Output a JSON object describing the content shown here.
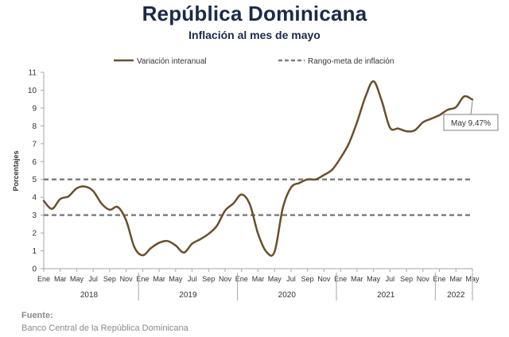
{
  "header": {
    "title": "República Dominicana",
    "subtitle": "Inflación al mes de mayo"
  },
  "source": {
    "label": "Fuente:",
    "text": "Banco Central de la República Dominicana"
  },
  "chart_data": {
    "type": "line",
    "ylabel": "Porcentajes",
    "ylim": [
      0,
      11
    ],
    "yticks": [
      0,
      1,
      2,
      3,
      4,
      5,
      6,
      7,
      8,
      9,
      10,
      11
    ],
    "grid": false,
    "legend_position": "top",
    "month_ticks": [
      "Ene",
      "Mar",
      "May",
      "Jul",
      "Sep",
      "Nov",
      "Ene",
      "Mar",
      "May",
      "Jul",
      "Sep",
      "Nov",
      "Ene",
      "Mar",
      "May",
      "Jul",
      "Sep",
      "Nov",
      "Ene",
      "Mar",
      "May",
      "Jul",
      "Sep",
      "Nov",
      "Ene",
      "Mar",
      "May"
    ],
    "years": [
      {
        "label": "2018",
        "start": 0,
        "end": 11
      },
      {
        "label": "2019",
        "start": 12,
        "end": 23
      },
      {
        "label": "2020",
        "start": 24,
        "end": 35
      },
      {
        "label": "2021",
        "start": 36,
        "end": 47
      },
      {
        "label": "2022",
        "start": 48,
        "end": 52
      }
    ],
    "months": [
      "2018-01",
      "2018-02",
      "2018-03",
      "2018-04",
      "2018-05",
      "2018-06",
      "2018-07",
      "2018-08",
      "2018-09",
      "2018-10",
      "2018-11",
      "2018-12",
      "2019-01",
      "2019-02",
      "2019-03",
      "2019-04",
      "2019-05",
      "2019-06",
      "2019-07",
      "2019-08",
      "2019-09",
      "2019-10",
      "2019-11",
      "2019-12",
      "2020-01",
      "2020-02",
      "2020-03",
      "2020-04",
      "2020-05",
      "2020-06",
      "2020-07",
      "2020-08",
      "2020-09",
      "2020-10",
      "2020-11",
      "2020-12",
      "2021-01",
      "2021-02",
      "2021-03",
      "2021-04",
      "2021-05",
      "2021-06",
      "2021-07",
      "2021-08",
      "2021-09",
      "2021-10",
      "2021-11",
      "2021-12",
      "2022-01",
      "2022-02",
      "2022-03",
      "2022-04",
      "2022-05"
    ],
    "series": [
      {
        "name": "Variación interanual",
        "color": "#6b4f2a",
        "style": "solid",
        "values": [
          3.8,
          3.35,
          3.9,
          4.05,
          4.5,
          4.6,
          4.35,
          3.65,
          3.3,
          3.45,
          2.7,
          1.2,
          0.75,
          1.15,
          1.45,
          1.55,
          1.3,
          0.9,
          1.4,
          1.65,
          1.95,
          2.4,
          3.25,
          3.65,
          4.15,
          3.6,
          1.95,
          0.95,
          0.95,
          3.4,
          4.55,
          4.8,
          5.0,
          5.0,
          5.25,
          5.55,
          6.2,
          7.0,
          8.2,
          9.6,
          10.5,
          9.4,
          7.9,
          7.85,
          7.7,
          7.75,
          8.2,
          8.4,
          8.6,
          8.9,
          9.05,
          9.65,
          9.47
        ]
      },
      {
        "name": "Rango-meta de inflación",
        "color": "#7f7f7f",
        "style": "dashed",
        "bounds": [
          3,
          5
        ]
      }
    ],
    "annotation": {
      "text": "May 9.47%",
      "index": 52
    }
  }
}
